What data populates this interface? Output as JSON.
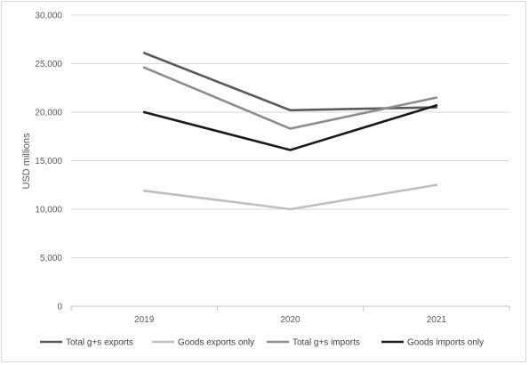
{
  "chart_data": {
    "type": "line",
    "title": "",
    "xlabel": "",
    "ylabel": "USD millions",
    "categories": [
      "2019",
      "2020",
      "2021"
    ],
    "ylim": [
      0,
      30000
    ],
    "yticks": [
      0,
      5000,
      10000,
      15000,
      20000,
      25000,
      30000
    ],
    "ytick_labels": [
      "0",
      "5,000",
      "10,000",
      "15,000",
      "20,000",
      "25,000",
      "30,000"
    ],
    "grid": true,
    "legend_position": "bottom",
    "series": [
      {
        "name": "Total g+s exports",
        "values": [
          26100,
          20200,
          20500
        ],
        "color": "#5a5a5a"
      },
      {
        "name": "Goods exports only",
        "values": [
          11900,
          10000,
          12500
        ],
        "color": "#bfbfbf"
      },
      {
        "name": "Total g+s imports",
        "values": [
          24600,
          18300,
          21500
        ],
        "color": "#8c8c8c"
      },
      {
        "name": "Goods imports only",
        "values": [
          20000,
          16100,
          20700
        ],
        "color": "#1a1a1a"
      }
    ]
  }
}
